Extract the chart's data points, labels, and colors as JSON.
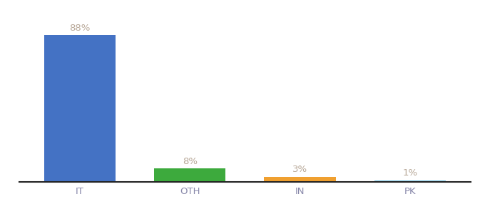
{
  "categories": [
    "IT",
    "OTH",
    "IN",
    "PK"
  ],
  "values": [
    88,
    8,
    3,
    1
  ],
  "bar_colors": [
    "#4472c4",
    "#3daa3d",
    "#f0a030",
    "#72c4e8"
  ],
  "label_color": "#b8a898",
  "background_color": "#ffffff",
  "bar_width": 0.65,
  "ylim": [
    0,
    100
  ],
  "annotation_fontsize": 9.5,
  "xlabel_fontsize": 9.5,
  "xlabel_color": "#8888aa"
}
